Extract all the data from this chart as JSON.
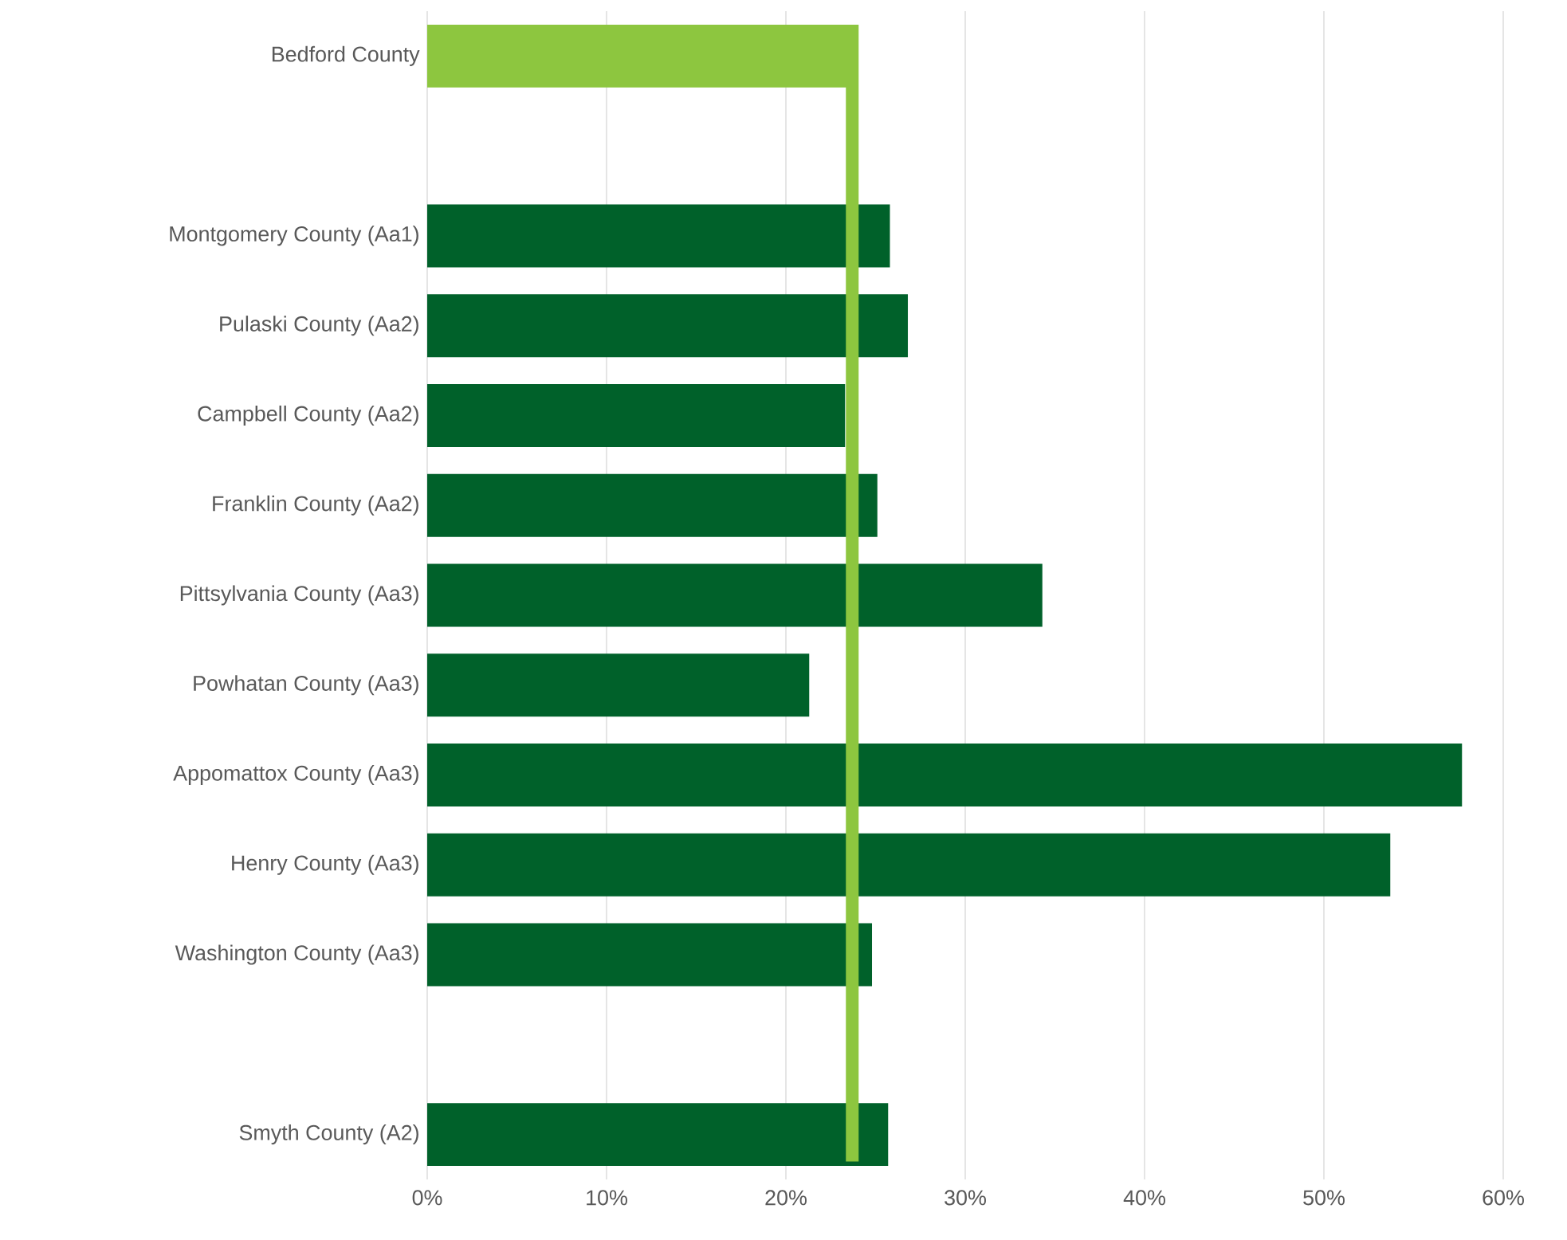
{
  "chart_data": {
    "type": "bar",
    "orientation": "horizontal",
    "categories": [
      "Bedford County",
      null,
      "Montgomery County (Aa1)",
      "Pulaski County (Aa2)",
      "Campbell County (Aa2)",
      "Franklin County (Aa2)",
      "Pittsylvania County (Aa3)",
      "Powhatan County (Aa3)",
      "Appomattox County (Aa3)",
      "Henry County (Aa3)",
      "Washington County (Aa3)",
      null,
      "Smyth County (A2)"
    ],
    "values": [
      23.5,
      null,
      25.8,
      26.8,
      23.3,
      25.1,
      34.3,
      21.3,
      57.7,
      53.7,
      24.8,
      null,
      25.7
    ],
    "colors": [
      "#8dc63f",
      "#00612a",
      "#00612a",
      "#00612a",
      "#00612a",
      "#00612a",
      "#00612a",
      "#00612a",
      "#00612a",
      "#00612a",
      "#00612a",
      "#00612a",
      "#00612a"
    ],
    "xlim": [
      0,
      60
    ],
    "xticks": [
      {
        "value": 0,
        "label": "0%"
      },
      {
        "value": 10,
        "label": "10%"
      },
      {
        "value": 20,
        "label": "20%"
      },
      {
        "value": 30,
        "label": "30%"
      },
      {
        "value": 40,
        "label": "40%"
      },
      {
        "value": 50,
        "label": "50%"
      },
      {
        "value": 60,
        "label": "60%"
      }
    ],
    "grid": "x",
    "ref_lines": [
      {
        "axis": "x",
        "value": 23.7,
        "color": "#8dc63f"
      }
    ]
  }
}
